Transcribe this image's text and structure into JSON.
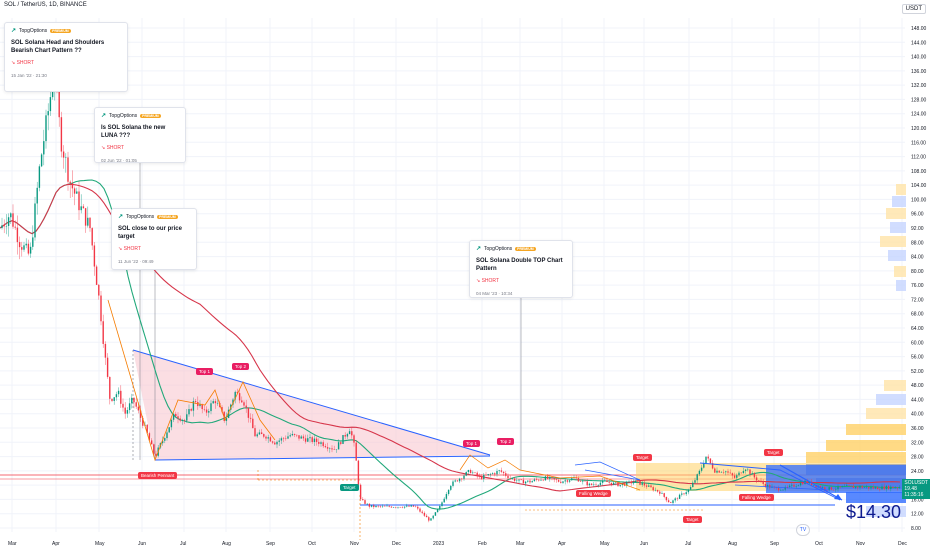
{
  "header": {
    "symbol_line": "SOL / TetherUS, 1D, BINANCE",
    "currency": "USDT"
  },
  "ideas": [
    {
      "author": "TopgOptions",
      "badge": "PREMIUM",
      "title": "SOL Solana Head and Shoulders Bearish Chart Pattern ??",
      "direction": "SHORT",
      "date": "15 Jan '22 · 21:30"
    },
    {
      "author": "TopgOptions",
      "badge": "PREMIUM",
      "title": "Is SOL Solana the new LUNA ???",
      "direction": "SHORT",
      "date": "02 Jun '22 · 01:05"
    },
    {
      "author": "TopgOptions",
      "badge": "PREMIUM",
      "title": "SOL close to our price target",
      "direction": "SHORT",
      "date": "11 Jun '22 · 09:49"
    },
    {
      "author": "TopgOptions",
      "badge": "PREMIUM",
      "title": "SOL Solana Double TOP Chart Pattern",
      "direction": "SHORT",
      "date": "04 Mar '23 · 10:34"
    }
  ],
  "labels": {
    "top1_a": "Top 1",
    "top2_a": "Top 2",
    "top1_b": "Top 1",
    "top2_b": "Top 2",
    "bearish_pennant": "Bearish Pennant",
    "target_1": "Target",
    "target_2": "Target",
    "target_3": "Target",
    "target_4": "Target",
    "falling_wedge_1": "Falling Wedge",
    "falling_wedge_2": "Falling Wedge"
  },
  "price_scale": [
    "148.00",
    "144.00",
    "140.00",
    "136.00",
    "132.00",
    "128.00",
    "124.00",
    "120.00",
    "116.00",
    "112.00",
    "108.00",
    "104.00",
    "100.00",
    "96.00",
    "92.00",
    "88.00",
    "84.00",
    "80.00",
    "76.00",
    "72.00",
    "68.00",
    "64.00",
    "60.00",
    "56.00",
    "52.00",
    "48.00",
    "44.00",
    "40.00",
    "36.00",
    "32.00",
    "28.00",
    "24.00",
    "20.00",
    "16.00",
    "12.00",
    "8.00"
  ],
  "time_scale": [
    "Mar",
    "Apr",
    "May",
    "Jun",
    "Jul",
    "Aug",
    "Sep",
    "Oct",
    "Nov",
    "Dec",
    "2023",
    "Feb",
    "Mar",
    "Apr",
    "May",
    "Jun",
    "Jul",
    "Aug",
    "Sep",
    "Oct",
    "Nov",
    "Dec"
  ],
  "current": {
    "symbol": "SOLUSDT",
    "price": "19.48",
    "countdown": "11:35:16"
  },
  "big_price": "$14.30",
  "colors": {
    "up": "#089981",
    "down": "#f23645",
    "ma_green": "#21a87a",
    "ma_red": "#d6354a",
    "pennant_fill": "#f8c8d0",
    "trend_blue": "#2962ff",
    "orange": "#f57c00",
    "zone_orange": "#ffd166",
    "zone_blue": "#2f6bff"
  }
}
